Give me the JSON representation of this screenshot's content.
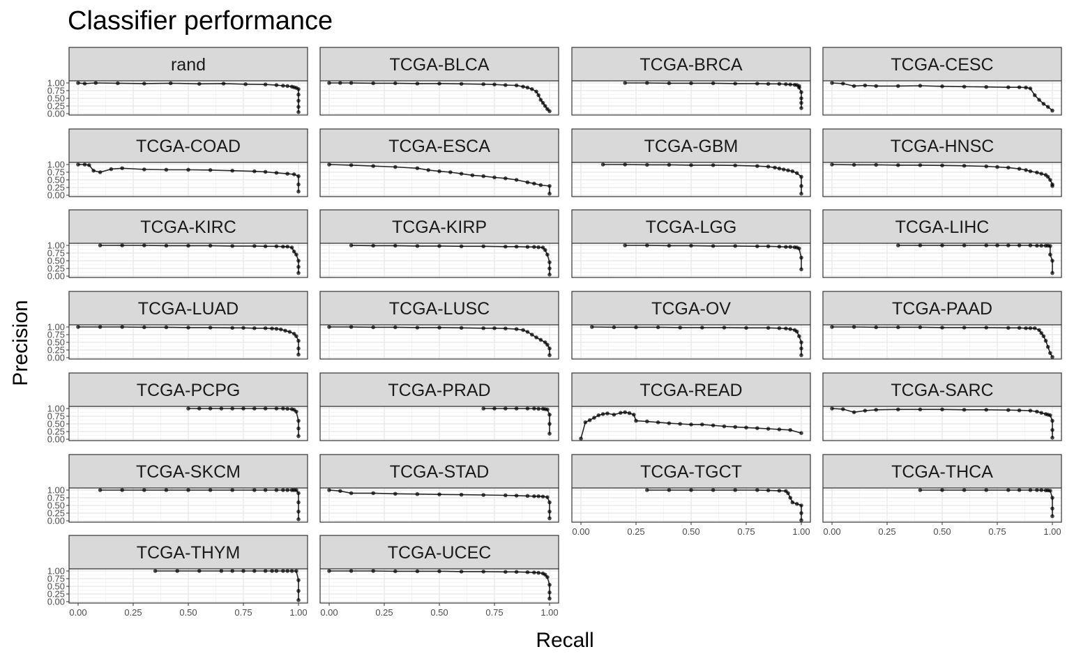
{
  "chart_data": {
    "type": "line",
    "subtype": "faceted precision-recall curves with points",
    "title": "Classifier performance",
    "xlabel": "Recall",
    "ylabel": "Precision",
    "xlim": [
      0,
      1
    ],
    "ylim": [
      0,
      1
    ],
    "x_ticks": [
      "0.00",
      "0.25",
      "0.50",
      "0.75",
      "1.00"
    ],
    "y_ticks": [
      "0.00",
      "0.25",
      "0.50",
      "0.75",
      "1.00"
    ],
    "grid": true,
    "line_color": "#000000",
    "strip_fill": "#d9d9d9",
    "facets": [
      {
        "label": "rand",
        "x": [
          0.0,
          0.03,
          0.08,
          0.18,
          0.3,
          0.42,
          0.55,
          0.66,
          0.76,
          0.85,
          0.9,
          0.93,
          0.95,
          0.97,
          0.98,
          0.99,
          1.0,
          1.0,
          1.0,
          1.0,
          1.0
        ],
        "y": [
          1.0,
          0.98,
          1.0,
          0.99,
          0.98,
          0.99,
          0.97,
          0.98,
          0.96,
          0.95,
          0.93,
          0.91,
          0.9,
          0.88,
          0.86,
          0.84,
          0.8,
          0.62,
          0.42,
          0.22,
          0.05
        ]
      },
      {
        "label": "TCGA-BLCA",
        "x": [
          0.0,
          0.05,
          0.1,
          0.2,
          0.3,
          0.4,
          0.5,
          0.6,
          0.7,
          0.75,
          0.8,
          0.85,
          0.88,
          0.9,
          0.92,
          0.94,
          0.95,
          0.96,
          0.97,
          0.98,
          0.99,
          1.0
        ],
        "y": [
          1.0,
          1.0,
          1.0,
          0.99,
          0.99,
          0.98,
          0.98,
          0.97,
          0.96,
          0.95,
          0.93,
          0.92,
          0.88,
          0.85,
          0.8,
          0.72,
          0.6,
          0.45,
          0.35,
          0.25,
          0.15,
          0.08
        ]
      },
      {
        "label": "TCGA-BRCA",
        "x": [
          0.2,
          0.3,
          0.4,
          0.5,
          0.6,
          0.7,
          0.8,
          0.85,
          0.9,
          0.93,
          0.95,
          0.97,
          0.98,
          0.99,
          0.99,
          1.0,
          1.0,
          1.0,
          1.0
        ],
        "y": [
          1.0,
          1.0,
          0.99,
          0.99,
          0.99,
          0.98,
          0.98,
          0.97,
          0.97,
          0.96,
          0.95,
          0.94,
          0.93,
          0.9,
          0.85,
          0.7,
          0.5,
          0.35,
          0.18
        ]
      },
      {
        "label": "TCGA-CESC",
        "x": [
          0.0,
          0.05,
          0.1,
          0.15,
          0.2,
          0.3,
          0.4,
          0.5,
          0.6,
          0.7,
          0.8,
          0.85,
          0.88,
          0.9,
          0.92,
          0.94,
          0.96,
          0.98,
          1.0
        ],
        "y": [
          1.0,
          0.98,
          0.9,
          0.92,
          0.9,
          0.9,
          0.91,
          0.89,
          0.88,
          0.87,
          0.86,
          0.86,
          0.85,
          0.82,
          0.6,
          0.45,
          0.32,
          0.22,
          0.1
        ]
      },
      {
        "label": "TCGA-COAD",
        "x": [
          0.0,
          0.03,
          0.05,
          0.07,
          0.1,
          0.15,
          0.2,
          0.3,
          0.4,
          0.5,
          0.6,
          0.7,
          0.8,
          0.85,
          0.9,
          0.95,
          0.98,
          1.0,
          1.0,
          1.0
        ],
        "y": [
          1.0,
          1.0,
          0.98,
          0.8,
          0.75,
          0.85,
          0.88,
          0.84,
          0.83,
          0.83,
          0.82,
          0.8,
          0.78,
          0.76,
          0.73,
          0.7,
          0.68,
          0.62,
          0.35,
          0.12
        ]
      },
      {
        "label": "TCGA-ESCA",
        "x": [
          0.0,
          0.1,
          0.2,
          0.3,
          0.4,
          0.45,
          0.5,
          0.55,
          0.6,
          0.65,
          0.7,
          0.75,
          0.8,
          0.85,
          0.9,
          0.93,
          0.96,
          1.0,
          1.0
        ],
        "y": [
          1.0,
          0.98,
          0.95,
          0.92,
          0.88,
          0.82,
          0.78,
          0.75,
          0.7,
          0.65,
          0.62,
          0.58,
          0.55,
          0.5,
          0.42,
          0.38,
          0.33,
          0.3,
          0.05
        ]
      },
      {
        "label": "TCGA-GBM",
        "x": [
          0.1,
          0.2,
          0.3,
          0.4,
          0.5,
          0.6,
          0.7,
          0.8,
          0.85,
          0.88,
          0.9,
          0.92,
          0.94,
          0.96,
          0.98,
          1.0,
          1.0,
          1.0
        ],
        "y": [
          1.0,
          1.0,
          0.99,
          0.99,
          0.98,
          0.98,
          0.97,
          0.95,
          0.93,
          0.9,
          0.87,
          0.84,
          0.81,
          0.78,
          0.72,
          0.6,
          0.3,
          0.05
        ]
      },
      {
        "label": "TCGA-HNSC",
        "x": [
          0.0,
          0.1,
          0.2,
          0.3,
          0.4,
          0.5,
          0.6,
          0.7,
          0.75,
          0.8,
          0.85,
          0.88,
          0.9,
          0.93,
          0.95,
          0.97,
          0.98,
          0.99,
          1.0,
          1.0
        ],
        "y": [
          1.0,
          0.99,
          0.99,
          0.98,
          0.98,
          0.97,
          0.96,
          0.94,
          0.92,
          0.9,
          0.86,
          0.82,
          0.78,
          0.74,
          0.7,
          0.66,
          0.6,
          0.5,
          0.35,
          0.3
        ]
      },
      {
        "label": "TCGA-KIRC",
        "x": [
          0.1,
          0.2,
          0.3,
          0.4,
          0.5,
          0.6,
          0.7,
          0.8,
          0.85,
          0.9,
          0.93,
          0.95,
          0.97,
          0.98,
          0.99,
          1.0,
          1.0,
          1.0
        ],
        "y": [
          1.0,
          1.0,
          1.0,
          0.99,
          0.99,
          0.99,
          0.98,
          0.98,
          0.97,
          0.97,
          0.96,
          0.96,
          0.93,
          0.8,
          0.7,
          0.5,
          0.3,
          0.1
        ]
      },
      {
        "label": "TCGA-KIRP",
        "x": [
          0.1,
          0.2,
          0.3,
          0.4,
          0.5,
          0.6,
          0.7,
          0.8,
          0.85,
          0.9,
          0.93,
          0.95,
          0.97,
          0.98,
          0.99,
          1.0,
          1.0,
          1.0
        ],
        "y": [
          1.0,
          0.99,
          0.99,
          0.98,
          0.98,
          0.97,
          0.97,
          0.96,
          0.96,
          0.95,
          0.95,
          0.94,
          0.93,
          0.85,
          0.7,
          0.45,
          0.25,
          0.05
        ]
      },
      {
        "label": "TCGA-LGG",
        "x": [
          0.2,
          0.3,
          0.4,
          0.5,
          0.6,
          0.7,
          0.8,
          0.85,
          0.9,
          0.93,
          0.95,
          0.97,
          0.98,
          0.99,
          1.0,
          1.0
        ],
        "y": [
          1.0,
          1.0,
          0.99,
          0.99,
          0.98,
          0.98,
          0.97,
          0.97,
          0.96,
          0.95,
          0.95,
          0.94,
          0.93,
          0.9,
          0.6,
          0.22
        ]
      },
      {
        "label": "TCGA-LIHC",
        "x": [
          0.3,
          0.4,
          0.5,
          0.6,
          0.7,
          0.75,
          0.8,
          0.85,
          0.9,
          0.93,
          0.95,
          0.97,
          0.98,
          0.99,
          0.99,
          1.0,
          1.0
        ],
        "y": [
          1.0,
          1.0,
          1.0,
          1.0,
          1.0,
          1.0,
          1.0,
          1.0,
          1.0,
          0.99,
          0.99,
          0.99,
          0.99,
          0.98,
          0.7,
          0.5,
          0.1
        ]
      },
      {
        "label": "TCGA-LUAD",
        "x": [
          0.0,
          0.1,
          0.2,
          0.3,
          0.4,
          0.5,
          0.6,
          0.7,
          0.75,
          0.8,
          0.85,
          0.88,
          0.9,
          0.92,
          0.94,
          0.96,
          0.98,
          0.99,
          1.0,
          1.0,
          1.0
        ],
        "y": [
          1.0,
          1.0,
          1.0,
          0.99,
          0.99,
          0.98,
          0.98,
          0.97,
          0.97,
          0.96,
          0.96,
          0.95,
          0.94,
          0.92,
          0.88,
          0.84,
          0.78,
          0.7,
          0.55,
          0.3,
          0.1
        ]
      },
      {
        "label": "TCGA-LUSC",
        "x": [
          0.0,
          0.1,
          0.2,
          0.3,
          0.4,
          0.5,
          0.6,
          0.7,
          0.75,
          0.8,
          0.85,
          0.88,
          0.9,
          0.92,
          0.94,
          0.96,
          0.98,
          0.99,
          1.0,
          1.0
        ],
        "y": [
          1.0,
          1.0,
          0.99,
          0.99,
          0.98,
          0.98,
          0.97,
          0.96,
          0.96,
          0.95,
          0.93,
          0.9,
          0.84,
          0.75,
          0.66,
          0.58,
          0.5,
          0.42,
          0.3,
          0.08
        ]
      },
      {
        "label": "TCGA-OV",
        "x": [
          0.05,
          0.15,
          0.25,
          0.35,
          0.45,
          0.55,
          0.65,
          0.75,
          0.85,
          0.9,
          0.93,
          0.95,
          0.97,
          0.98,
          0.99,
          1.0,
          1.0,
          1.0
        ],
        "y": [
          1.0,
          0.99,
          0.99,
          0.99,
          0.98,
          0.98,
          0.98,
          0.97,
          0.97,
          0.96,
          0.95,
          0.93,
          0.9,
          0.85,
          0.7,
          0.5,
          0.3,
          0.08
        ]
      },
      {
        "label": "TCGA-PAAD",
        "x": [
          0.0,
          0.1,
          0.2,
          0.3,
          0.4,
          0.5,
          0.6,
          0.7,
          0.8,
          0.85,
          0.88,
          0.9,
          0.92,
          0.94,
          0.95,
          0.96,
          0.97,
          0.98,
          0.99,
          1.0
        ],
        "y": [
          1.0,
          1.0,
          0.99,
          0.99,
          0.99,
          0.98,
          0.98,
          0.98,
          0.97,
          0.97,
          0.96,
          0.96,
          0.96,
          0.9,
          0.8,
          0.7,
          0.55,
          0.35,
          0.15,
          0.02
        ]
      },
      {
        "label": "TCGA-PCPG",
        "x": [
          0.5,
          0.55,
          0.6,
          0.65,
          0.7,
          0.75,
          0.8,
          0.85,
          0.9,
          0.93,
          0.95,
          0.97,
          0.98,
          0.99,
          1.0,
          1.0,
          1.0
        ],
        "y": [
          1.0,
          1.0,
          1.0,
          1.0,
          1.0,
          1.0,
          1.0,
          1.0,
          1.0,
          1.0,
          0.99,
          0.98,
          0.96,
          0.9,
          0.6,
          0.35,
          0.1
        ]
      },
      {
        "label": "TCGA-PRAD",
        "x": [
          0.7,
          0.75,
          0.8,
          0.85,
          0.9,
          0.93,
          0.95,
          0.97,
          0.98,
          0.99,
          1.0,
          1.0,
          1.0
        ],
        "y": [
          1.0,
          1.0,
          1.0,
          1.0,
          1.0,
          1.0,
          0.99,
          0.99,
          0.98,
          0.97,
          0.8,
          0.5,
          0.18
        ]
      },
      {
        "label": "TCGA-READ",
        "x": [
          0.0,
          0.02,
          0.04,
          0.06,
          0.08,
          0.1,
          0.12,
          0.15,
          0.18,
          0.2,
          0.22,
          0.24,
          0.25,
          0.3,
          0.35,
          0.4,
          0.45,
          0.5,
          0.55,
          0.6,
          0.65,
          0.7,
          0.75,
          0.8,
          0.85,
          0.9,
          0.95,
          1.0
        ],
        "y": [
          0.02,
          0.55,
          0.62,
          0.7,
          0.78,
          0.82,
          0.84,
          0.8,
          0.86,
          0.88,
          0.85,
          0.8,
          0.6,
          0.58,
          0.55,
          0.52,
          0.5,
          0.48,
          0.48,
          0.45,
          0.42,
          0.4,
          0.38,
          0.36,
          0.34,
          0.32,
          0.3,
          0.2
        ]
      },
      {
        "label": "TCGA-SARC",
        "x": [
          0.0,
          0.05,
          0.1,
          0.15,
          0.2,
          0.3,
          0.4,
          0.5,
          0.6,
          0.7,
          0.8,
          0.85,
          0.9,
          0.93,
          0.95,
          0.97,
          0.98,
          0.99,
          1.0,
          1.0,
          1.0
        ],
        "y": [
          1.0,
          0.98,
          0.88,
          0.93,
          0.96,
          0.97,
          0.97,
          0.97,
          0.96,
          0.96,
          0.95,
          0.94,
          0.93,
          0.9,
          0.86,
          0.82,
          0.8,
          0.78,
          0.6,
          0.3,
          0.05
        ]
      },
      {
        "label": "TCGA-SKCM",
        "x": [
          0.1,
          0.2,
          0.3,
          0.4,
          0.5,
          0.6,
          0.7,
          0.8,
          0.85,
          0.9,
          0.93,
          0.95,
          0.97,
          0.98,
          0.99,
          1.0,
          1.0,
          1.0,
          1.0
        ],
        "y": [
          1.0,
          1.0,
          1.0,
          1.0,
          1.0,
          1.0,
          1.0,
          1.0,
          1.0,
          1.0,
          1.0,
          1.0,
          1.0,
          1.0,
          1.0,
          0.9,
          0.6,
          0.3,
          0.05
        ]
      },
      {
        "label": "TCGA-STAD",
        "x": [
          0.0,
          0.05,
          0.1,
          0.2,
          0.3,
          0.4,
          0.5,
          0.6,
          0.7,
          0.8,
          0.85,
          0.9,
          0.93,
          0.95,
          0.97,
          0.99,
          1.0,
          1.0,
          1.0
        ],
        "y": [
          1.0,
          0.97,
          0.9,
          0.9,
          0.88,
          0.87,
          0.86,
          0.85,
          0.84,
          0.83,
          0.82,
          0.81,
          0.8,
          0.8,
          0.79,
          0.77,
          0.6,
          0.3,
          0.08
        ]
      },
      {
        "label": "TCGA-TGCT",
        "x": [
          0.3,
          0.4,
          0.5,
          0.6,
          0.7,
          0.8,
          0.85,
          0.9,
          0.93,
          0.94,
          0.95,
          0.96,
          0.98,
          1.0,
          1.0,
          1.0
        ],
        "y": [
          1.0,
          1.0,
          1.0,
          1.0,
          1.0,
          1.0,
          0.99,
          0.98,
          0.97,
          0.9,
          0.75,
          0.6,
          0.55,
          0.5,
          0.25,
          0.02
        ]
      },
      {
        "label": "TCGA-THCA",
        "x": [
          0.4,
          0.5,
          0.6,
          0.7,
          0.8,
          0.85,
          0.9,
          0.93,
          0.95,
          0.97,
          0.98,
          0.99,
          1.0,
          1.0,
          1.0
        ],
        "y": [
          1.0,
          1.0,
          1.0,
          1.0,
          1.0,
          1.0,
          1.0,
          1.0,
          1.0,
          0.99,
          0.99,
          0.98,
          0.75,
          0.4,
          0.15
        ]
      },
      {
        "label": "TCGA-THYM",
        "x": [
          0.35,
          0.45,
          0.55,
          0.65,
          0.7,
          0.75,
          0.8,
          0.85,
          0.88,
          0.9,
          0.93,
          0.95,
          0.97,
          0.99,
          1.0,
          1.0,
          1.0
        ],
        "y": [
          1.0,
          1.0,
          1.0,
          1.0,
          1.0,
          1.0,
          1.0,
          1.0,
          1.0,
          1.0,
          1.0,
          1.0,
          1.0,
          1.0,
          0.7,
          0.35,
          0.05
        ]
      },
      {
        "label": "TCGA-UCEC",
        "x": [
          0.0,
          0.1,
          0.2,
          0.3,
          0.4,
          0.5,
          0.6,
          0.7,
          0.8,
          0.85,
          0.9,
          0.93,
          0.95,
          0.97,
          0.98,
          0.99,
          1.0,
          1.0,
          1.0
        ],
        "y": [
          1.0,
          1.0,
          1.0,
          0.99,
          0.99,
          0.99,
          0.98,
          0.98,
          0.97,
          0.97,
          0.96,
          0.95,
          0.94,
          0.92,
          0.88,
          0.8,
          0.55,
          0.3,
          0.1
        ]
      }
    ]
  }
}
